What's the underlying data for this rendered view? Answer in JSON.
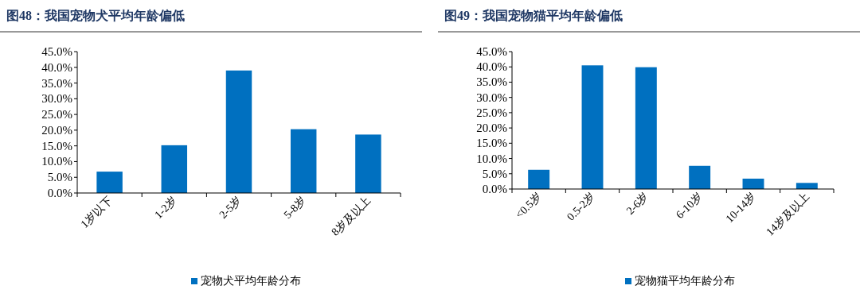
{
  "chart_data": [
    {
      "type": "bar",
      "title": "图48：我国宠物犬平均年龄偏低",
      "categories": [
        "1岁以下",
        "1-2岁",
        "2-5岁",
        "5-8岁",
        "8岁及以上"
      ],
      "series": [
        {
          "name": "宠物犬平均年龄分布",
          "color": "#0070c0",
          "values": [
            6.8,
            15.2,
            39.0,
            20.3,
            18.6
          ]
        }
      ],
      "ylim": [
        0,
        45
      ],
      "yticks": [
        {
          "value": 0,
          "label": "0.0%"
        },
        {
          "value": 5,
          "label": "5.0%"
        },
        {
          "value": 10,
          "label": "10.0%"
        },
        {
          "value": 15,
          "label": "15.0%"
        },
        {
          "value": 20,
          "label": "20.0%"
        },
        {
          "value": 25,
          "label": "25.0%"
        },
        {
          "value": 30,
          "label": "30.0%"
        },
        {
          "value": 35,
          "label": "35.0%"
        },
        {
          "value": 40,
          "label": "40.0%"
        },
        {
          "value": 45,
          "label": "45.0%"
        }
      ],
      "grid": false,
      "legend": "bottom"
    },
    {
      "type": "bar",
      "title": "图49：我国宠物猫平均年龄偏低",
      "categories": [
        "<0.5岁",
        "0.5-2岁",
        "2-6岁",
        "6-10岁",
        "10-14岁",
        "14岁及以上"
      ],
      "series": [
        {
          "name": "宠物猫平均年龄分布",
          "color": "#0070c0",
          "values": [
            6.3,
            40.5,
            39.9,
            7.6,
            3.4,
            2.0
          ]
        }
      ],
      "ylim": [
        0,
        45
      ],
      "yticks": [
        {
          "value": 0,
          "label": "0.0%"
        },
        {
          "value": 5,
          "label": "5.0%"
        },
        {
          "value": 10,
          "label": "10.0%"
        },
        {
          "value": 15,
          "label": "15.0%"
        },
        {
          "value": 20,
          "label": "20.0%"
        },
        {
          "value": 25,
          "label": "25.0%"
        },
        {
          "value": 30,
          "label": "30.0%"
        },
        {
          "value": 35,
          "label": "35.0%"
        },
        {
          "value": 40,
          "label": "40.0%"
        },
        {
          "value": 45,
          "label": "45.0%"
        }
      ],
      "grid": false,
      "legend": "bottom"
    }
  ]
}
